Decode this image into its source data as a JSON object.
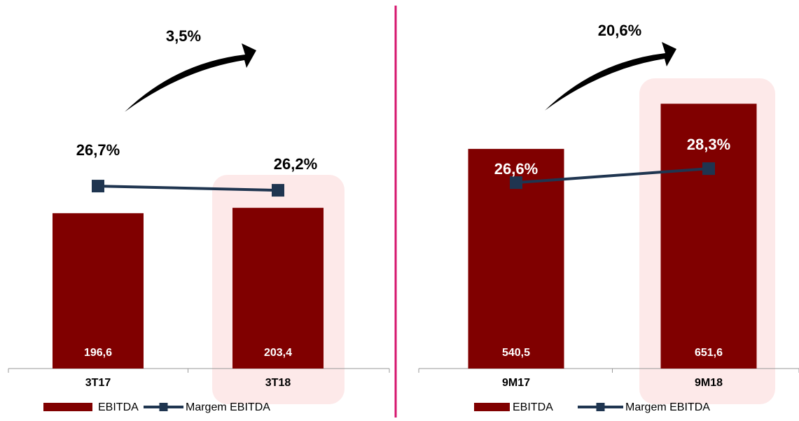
{
  "chart_data": [
    {
      "type": "bar-line",
      "annotation": "3,5%",
      "categories": [
        "3T17",
        "3T18"
      ],
      "series": [
        {
          "name": "EBITDA",
          "color": "#800000",
          "values": [
            196.6,
            203.4
          ],
          "value_labels": [
            "196,6",
            "203,4"
          ]
        },
        {
          "name": "Margem EBITDA",
          "color": "#1f3550",
          "axis": "y2",
          "values": [
            26.7,
            26.2
          ],
          "value_labels": [
            "26,7%",
            "26,2%"
          ]
        }
      ],
      "ylim": [
        0,
        431
      ],
      "y2lim": [
        5,
        45.5
      ]
    },
    {
      "type": "bar-line",
      "annotation": "20,6%",
      "categories": [
        "9M17",
        "9M18"
      ],
      "series": [
        {
          "name": "EBITDA",
          "color": "#800000",
          "values": [
            540.5,
            651.6
          ],
          "value_labels": [
            "540,5",
            "651,6"
          ]
        },
        {
          "name": "Margem EBITDA",
          "color": "#1f3550",
          "axis": "y2",
          "values": [
            26.6,
            28.3
          ],
          "value_labels": [
            "26,6%",
            "28,3%"
          ]
        }
      ],
      "ylim": [
        0,
        838
      ],
      "y2lim": [
        4,
        45.4
      ]
    }
  ]
}
